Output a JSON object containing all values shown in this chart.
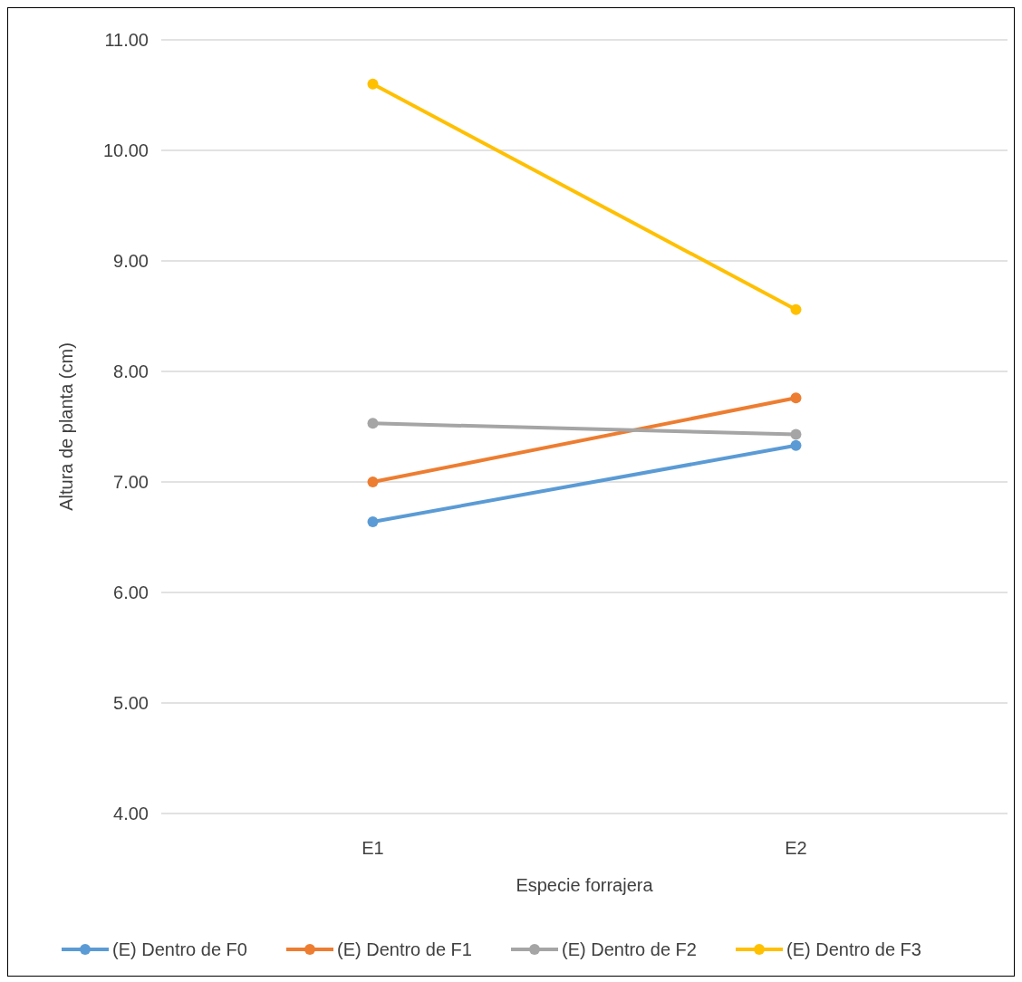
{
  "chart_data": {
    "type": "line",
    "xlabel": "Especie forrajera",
    "ylabel": "Altura de planta (cm)",
    "categories": [
      "E1",
      "E2"
    ],
    "series": [
      {
        "name": "(E) Dentro de F0",
        "color": "#5b9bd5",
        "values": [
          6.64,
          7.33
        ]
      },
      {
        "name": "(E) Dentro de F1",
        "color": "#ed7d31",
        "values": [
          7.0,
          7.76
        ]
      },
      {
        "name": "(E) Dentro de F2",
        "color": "#a5a5a5",
        "values": [
          7.53,
          7.43
        ]
      },
      {
        "name": "(E) Dentro de F3",
        "color": "#ffc000",
        "values": [
          10.6,
          8.56
        ]
      }
    ],
    "ylim": [
      4,
      11
    ],
    "yticks": [
      {
        "value": 4,
        "label": "4.00"
      },
      {
        "value": 5,
        "label": "5.00"
      },
      {
        "value": 6,
        "label": "6.00"
      },
      {
        "value": 7,
        "label": "7.00"
      },
      {
        "value": 8,
        "label": "8.00"
      },
      {
        "value": 9,
        "label": "9.00"
      },
      {
        "value": 10,
        "label": "10.00"
      },
      {
        "value": 11,
        "label": "11.00"
      }
    ],
    "grid": "y",
    "legend": "bottom",
    "marker": "circle",
    "line_style": "solid"
  }
}
